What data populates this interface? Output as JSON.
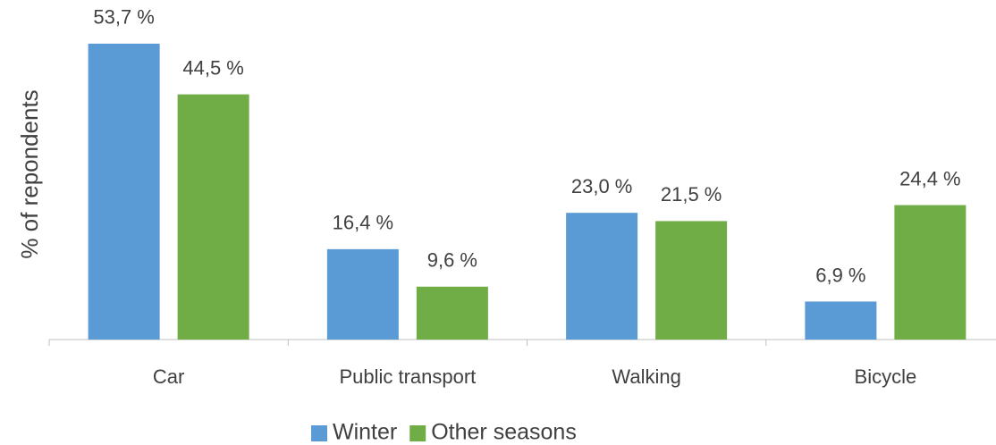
{
  "chart_data": {
    "type": "bar",
    "y_label": "% of repondents",
    "categories": [
      "Car",
      "Public transport",
      "Walking",
      "Bicycle"
    ],
    "series": [
      {
        "name": "Winter",
        "color": "#5b9bd5",
        "values": [
          53.7,
          16.4,
          23.0,
          6.9
        ],
        "value_labels": [
          "53,7 %",
          "16,4 %",
          "23,0 %",
          "6,9 %"
        ]
      },
      {
        "name": "Other seasons",
        "color": "#70ad47",
        "values": [
          44.5,
          9.6,
          21.5,
          24.4
        ],
        "value_labels": [
          "44,5 %",
          "9,6 %",
          "21,5 %",
          "24,4 %"
        ]
      }
    ],
    "ylim": [
      0,
      60
    ],
    "legend": "bottom"
  }
}
